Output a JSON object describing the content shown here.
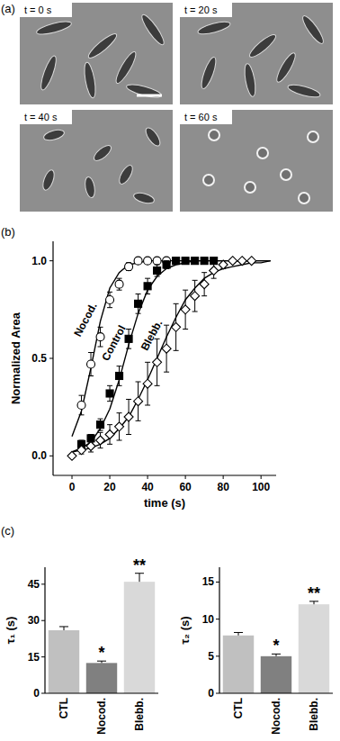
{
  "images": {
    "title": "(a)",
    "frames": [
      "t = 0 s",
      "t = 20 s",
      "t = 40 s",
      "t = 60 s"
    ]
  },
  "chart_data": [
    {
      "type": "line",
      "title": "(b)",
      "x_label": "time (s)",
      "y_label": "Normalized Area",
      "xlim": [
        -10,
        108
      ],
      "ylim": [
        -0.1,
        1.1
      ],
      "xticks": [
        0,
        20,
        40,
        60,
        80,
        100
      ],
      "yticks": [
        {
          "value": 0,
          "label": "0.0"
        },
        {
          "value": 0.5,
          "label": "0.5"
        },
        {
          "value": 1,
          "label": "1.0"
        }
      ],
      "series": [
        {
          "name": "Nocod.",
          "color": "#000000",
          "marker": "open-circle",
          "line_style": "solid",
          "x": [
            5,
            10,
            15,
            20,
            25,
            30,
            35,
            40,
            45,
            50
          ],
          "values": [
            0.26,
            0.47,
            0.61,
            0.8,
            0.88,
            0.97,
            1,
            1,
            1,
            1
          ],
          "errors": [
            0.05,
            0.06,
            0.05,
            0.04,
            0.03,
            0.02,
            0.01,
            0.01,
            0.01,
            0.01
          ],
          "fit_x": [
            0,
            5,
            10,
            15,
            20,
            25,
            30,
            35,
            40,
            45,
            50,
            55,
            60,
            65,
            70,
            75,
            80,
            85,
            90,
            95,
            100,
            105
          ],
          "fit": [
            0.1,
            0.23,
            0.45,
            0.69,
            0.86,
            0.94,
            0.98,
            0.99,
            1,
            1,
            1,
            1,
            1,
            1,
            1,
            1,
            1,
            1,
            1,
            1,
            1,
            1
          ]
        },
        {
          "name": "Control",
          "color": "#000000",
          "marker": "filled-square",
          "line_style": "solid",
          "x": [
            5,
            10,
            15,
            20,
            25,
            30,
            35,
            40,
            45,
            50,
            55,
            60,
            65,
            70,
            75
          ],
          "values": [
            0.06,
            0.09,
            0.16,
            0.32,
            0.41,
            0.6,
            0.78,
            0.87,
            0.95,
            0.98,
            1,
            1,
            1,
            1,
            1
          ],
          "errors": [
            0.02,
            0.02,
            0.03,
            0.04,
            0.05,
            0.05,
            0.05,
            0.04,
            0.03,
            0.02,
            0.01,
            0.01,
            0.01,
            0.01,
            0.01
          ],
          "fit_x": [
            0,
            5,
            10,
            15,
            20,
            25,
            30,
            35,
            40,
            45,
            50,
            55,
            60,
            65,
            70,
            75,
            80,
            85,
            90,
            95,
            100,
            105
          ],
          "fit": [
            0.02,
            0.04,
            0.07,
            0.14,
            0.24,
            0.39,
            0.57,
            0.73,
            0.85,
            0.92,
            0.96,
            0.98,
            0.99,
            1,
            1,
            1,
            1,
            1,
            1,
            1,
            1,
            1
          ]
        },
        {
          "name": "Blebb.",
          "color": "#000000",
          "marker": "open-diamond",
          "line_style": "solid",
          "x": [
            0,
            5,
            10,
            15,
            20,
            25,
            30,
            35,
            40,
            45,
            50,
            55,
            60,
            65,
            70,
            75,
            80,
            85,
            90,
            95
          ],
          "values": [
            0,
            0.03,
            0.05,
            0.08,
            0.11,
            0.15,
            0.2,
            0.28,
            0.37,
            0.48,
            0.55,
            0.66,
            0.75,
            0.82,
            0.88,
            0.95,
            0.98,
            1,
            1,
            1
          ],
          "errors": [
            0.01,
            0.02,
            0.03,
            0.04,
            0.05,
            0.07,
            0.09,
            0.1,
            0.11,
            0.12,
            0.12,
            0.12,
            0.1,
            0.08,
            0.06,
            0.04,
            0.02,
            0.01,
            0.01,
            0.01
          ],
          "fit_x": [
            0,
            5,
            10,
            15,
            20,
            25,
            30,
            35,
            40,
            45,
            50,
            55,
            60,
            65,
            70,
            75,
            80,
            85,
            90,
            95,
            100,
            105
          ],
          "fit": [
            0.02,
            0.03,
            0.04,
            0.06,
            0.09,
            0.14,
            0.2,
            0.29,
            0.39,
            0.5,
            0.61,
            0.71,
            0.8,
            0.86,
            0.91,
            0.94,
            0.96,
            0.97,
            0.98,
            0.99,
            0.99,
            1
          ]
        }
      ]
    },
    {
      "type": "bar",
      "title": "(c)",
      "y_label": "τ₁ (s)",
      "categories": [
        "CTL",
        "Nocod.",
        "Blebb."
      ],
      "values": [
        26,
        12.5,
        46
      ],
      "errors": [
        1.5,
        0.8,
        3.5
      ],
      "significance": [
        null,
        "*",
        "**"
      ],
      "colors": [
        "#c0c0c0",
        "#808080",
        "#d9d9d9"
      ],
      "ylim": [
        0,
        52
      ],
      "yticks": [
        0,
        15,
        30,
        45
      ]
    },
    {
      "type": "bar",
      "y_label": "τ₂ (s)",
      "categories": [
        "CTL",
        "Nocod.",
        "Blebb."
      ],
      "values": [
        7.8,
        5,
        12
      ],
      "errors": [
        0.4,
        0.3,
        0.4
      ],
      "significance": [
        null,
        "*",
        "**"
      ],
      "colors": [
        "#c0c0c0",
        "#808080",
        "#d9d9d9"
      ],
      "ylim": [
        0,
        17
      ],
      "yticks": [
        0,
        5,
        10,
        15
      ]
    }
  ]
}
